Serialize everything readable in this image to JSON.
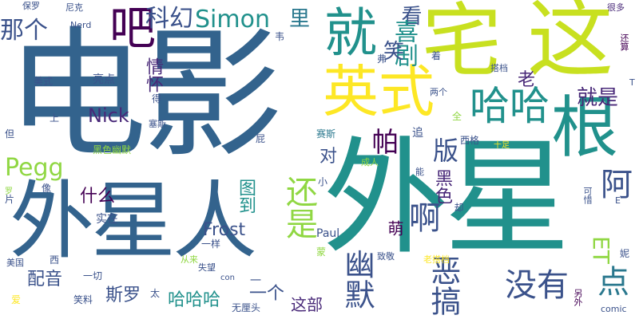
{
  "words": {
    "dianying": "电影",
    "waixing": "外星",
    "waixingren": "外星人",
    "zhai": "宅",
    "zhe": "这",
    "jiu": "就",
    "ba": "吧",
    "yingshi": "英式",
    "gen": "根",
    "haha": "哈哈",
    "simon": "Simon",
    "kehuan": "科幻",
    "li": "里",
    "kan": "看",
    "xiju": "喜剧",
    "nage": "那个",
    "pegg": "Pegg",
    "nick": "Nick",
    "qinghuai": "情怀",
    "haishi": "还是",
    "pa": "帕",
    "ban": "版",
    "a": "啊",
    "youmo": "幽默",
    "egao": "恶搞",
    "meiyou": "没有",
    "dian": "点",
    "et": "ET",
    "a2": "阿",
    "jiushi": "就是",
    "lao": "老",
    "xiao": "笑",
    "dui": "对",
    "tudao": "图到",
    "heise": "黑色",
    "shenme": "什么",
    "frost": "Frost",
    "peiyin": "配音",
    "siluo": "斯罗",
    "hahaha": "哈哈哈",
    "yige": "一个",
    "zhebu": "这部",
    "paul": "Paul",
    "meng": "萌",
    "meishi": "美式",
    "liangdian": "亮点",
    "baoyu": "保罗",
    "nike": "尼克",
    "nerd": "Nerd",
    "henduo": "很多",
    "huansuan": "还算",
    "liangge": "两个",
    "saisi": "赛斯",
    "quan": "全",
    "dapei": "搭档",
    "zhui": "追",
    "xige": "西格",
    "chengren": "成人",
    "shizai": "实在",
    "yiyang": "一样",
    "xiaoliao": "笑料",
    "wuliantou": "无厘头",
    "shiwang": "失望",
    "zhijing": "致敬",
    "yiqie": "一切",
    "meiguo": "美国",
    "congla": "从来",
    "laodapei": "老搭档",
    "lingwai": "另外",
    "comic": "comic",
    "keqing": "可惜",
    "que": "却",
    "neng": "能",
    "xiao2": "小",
    "xiang": "像",
    "pian": "片",
    "dan": "但",
    "shang": "上",
    "de": "得",
    "yi": "一",
    "pi": "屁",
    "heiseyoumo": "黑色幽默",
    "xi": "西",
    "tai": "太",
    "ai": "爱",
    "luo": "罗",
    "con": "con",
    "meng2": "蒙",
    "haijin": "还要",
    "fu": "弗",
    "wei": "韦",
    "zhe2": "着",
    "qi": "七",
    "e": "E",
    "t": "T",
    "ni": "妮",
    "nigou": "尼玛",
    "jianzhi": "简直",
    "xiake": "下",
    "shisi": "十足",
    "zhiheng": "值得",
    "chenglu": "催",
    "saisi2": "塞斯",
    "jiu2": "就是"
  },
  "colors": {
    "dark_blue": "#33638d",
    "navy": "#3b528b",
    "indigo": "#482878",
    "purple": "#440154",
    "teal": "#21918c",
    "teal2": "#2a788e",
    "green": "#35b779",
    "green2": "#22a884",
    "lime": "#90d743",
    "yellow": "#c8e020",
    "yellow2": "#fde725"
  }
}
